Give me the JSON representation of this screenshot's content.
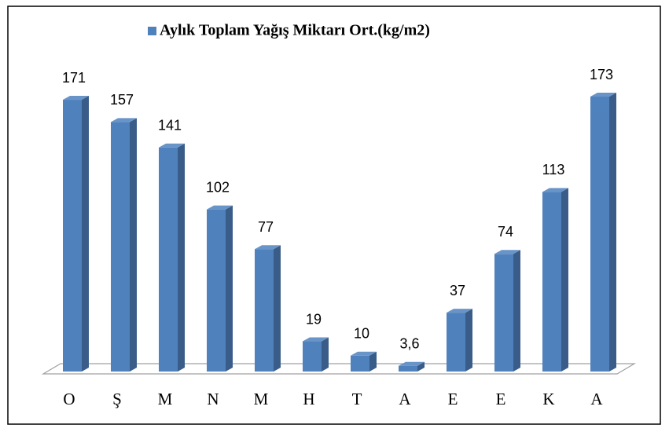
{
  "chart_data": {
    "type": "bar3d",
    "categories": [
      "O",
      "Ş",
      "M",
      "N",
      "M",
      "H",
      "T",
      "A",
      "E",
      "E",
      "K",
      "A"
    ],
    "series": [
      {
        "name": "Aylık Toplam Yağış Miktarı Ort.(kg/m2)",
        "color": "#4f81bd",
        "values": [
          171,
          157,
          141,
          102,
          77,
          19,
          10,
          3.6,
          37,
          74,
          113,
          173
        ],
        "value_labels": [
          "171",
          "157",
          "141",
          "102",
          "77",
          "19",
          "10",
          "3,6",
          "37",
          "74",
          "113",
          "173"
        ]
      }
    ],
    "legend": "top"
  }
}
